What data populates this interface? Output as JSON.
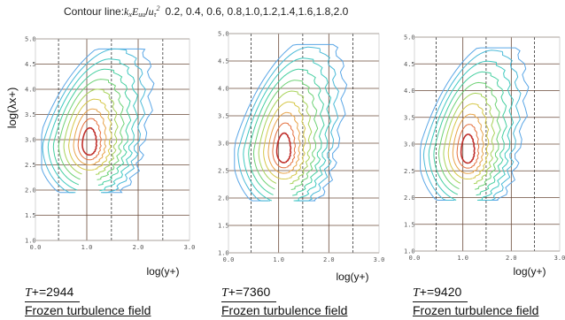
{
  "header": {
    "prefix": "Contour line:",
    "formula_k": "k",
    "formula_k_sub": "x",
    "formula_E": "E",
    "formula_E_sub": "uu",
    "formula_slash": "/",
    "formula_u": "u",
    "formula_u_sub": "τ",
    "formula_sup": "2",
    "levels_text": "0.2, 0.4, 0.6, 0.8,1.0,1.2,1.4,1.6,1.8,2.0"
  },
  "y_axis_label": "log(λx+)",
  "x_axis_label": "log(y+)",
  "chart_data": [
    {
      "type": "contour",
      "xlabel": "log(y+)",
      "ylabel": "log(λx+)",
      "xlim": [
        0.0,
        3.0
      ],
      "ylim": [
        1.0,
        5.0
      ],
      "x_ticks": [
        "0.0",
        "1.0",
        "2.0",
        "3.0"
      ],
      "y_ticks": [
        "1.0",
        "1.5",
        "2.0",
        "2.5",
        "3.0",
        "3.5",
        "4.0",
        "4.5",
        "5.0"
      ],
      "contour_levels": [
        0.2,
        0.4,
        0.6,
        0.8,
        1.0,
        1.2,
        1.4,
        1.6,
        1.8,
        2.0
      ],
      "peak": {
        "x": 1.05,
        "y": 2.9
      },
      "caption_T_symbol": "T",
      "caption_T_value": "+=2944",
      "caption_field": "Frozen turbulence field"
    },
    {
      "type": "contour",
      "xlabel": "log(y+)",
      "ylabel": "log(λx+)",
      "xlim": [
        0.0,
        3.0
      ],
      "ylim": [
        1.0,
        5.0
      ],
      "x_ticks": [
        "0.0",
        "1.0",
        "2.0",
        "3.0"
      ],
      "y_ticks": [
        "1.0",
        "1.5",
        "2.0",
        "2.5",
        "3.0",
        "3.5",
        "4.0",
        "4.5",
        "5.0"
      ],
      "contour_levels": [
        0.2,
        0.4,
        0.6,
        0.8,
        1.0,
        1.2,
        1.4,
        1.6,
        1.8,
        2.0
      ],
      "peak": {
        "x": 1.1,
        "y": 2.85
      },
      "caption_T_symbol": "T",
      "caption_T_value": "+=7360",
      "caption_field": "Frozen turbulence field"
    },
    {
      "type": "contour",
      "xlabel": "log(y+)",
      "ylabel": "log(λx+)",
      "xlim": [
        0.0,
        3.0
      ],
      "ylim": [
        1.0,
        5.0
      ],
      "x_ticks": [
        "0.0",
        "1.0",
        "2.0",
        "3.0"
      ],
      "y_ticks": [
        "1.0",
        "1.5",
        "2.0",
        "2.5",
        "3.0",
        "3.5",
        "4.0",
        "4.5",
        "5.0"
      ],
      "contour_levels": [
        0.2,
        0.4,
        0.6,
        0.8,
        1.0,
        1.2,
        1.4,
        1.6,
        1.8,
        2.0
      ],
      "peak": {
        "x": 1.1,
        "y": 2.85
      },
      "caption_T_symbol": "T",
      "caption_T_value": "+=9420",
      "caption_field": "Frozen turbulence field"
    }
  ],
  "colors": {
    "levels": [
      "#5aa6e6",
      "#4bbad8",
      "#3fc9c0",
      "#46cfa0",
      "#6fd276",
      "#a8d35a",
      "#d6c84a",
      "#e8a44a",
      "#e4703e",
      "#c0302c"
    ],
    "grid_solid": "#6b4b3a",
    "grid_dashed": "#333333"
  }
}
